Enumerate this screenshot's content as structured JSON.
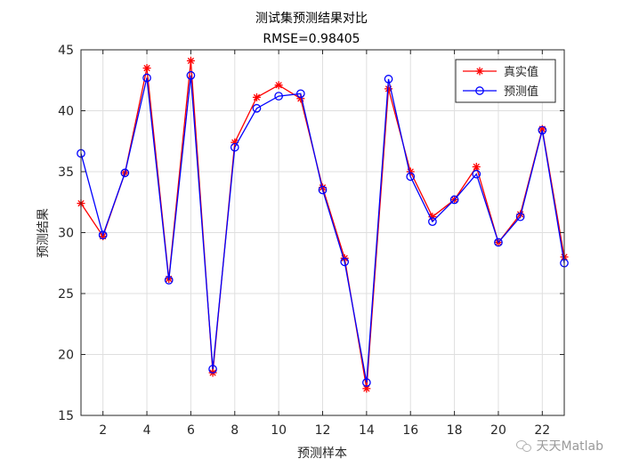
{
  "chart_data": {
    "type": "line",
    "title": "测试集预测结果对比",
    "subtitle": "RMSE=0.98405",
    "xlabel": "预测样本",
    "ylabel": "预测结果",
    "xlim": [
      1,
      23
    ],
    "ylim": [
      15,
      45
    ],
    "xticks": [
      2,
      4,
      6,
      8,
      10,
      12,
      14,
      16,
      18,
      20,
      22
    ],
    "yticks": [
      15,
      20,
      25,
      30,
      35,
      40,
      45
    ],
    "grid": true,
    "legend_position": "top-right",
    "x": [
      1,
      2,
      3,
      4,
      5,
      6,
      7,
      8,
      9,
      10,
      11,
      12,
      13,
      14,
      15,
      16,
      17,
      18,
      19,
      20,
      21,
      22,
      23
    ],
    "series": [
      {
        "name": "真实值",
        "color": "#ff0000",
        "marker": "star",
        "values": [
          32.4,
          29.7,
          34.9,
          43.5,
          26.2,
          44.1,
          18.5,
          37.4,
          41.1,
          42.1,
          41.0,
          33.7,
          27.9,
          17.2,
          41.8,
          35.0,
          31.3,
          32.7,
          35.4,
          29.2,
          31.5,
          38.5,
          28.0
        ]
      },
      {
        "name": "预测值",
        "color": "#0000ff",
        "marker": "circle",
        "values": [
          36.5,
          29.8,
          34.9,
          42.7,
          26.1,
          42.9,
          18.8,
          37.0,
          40.2,
          41.2,
          41.4,
          33.5,
          27.6,
          17.7,
          42.6,
          34.6,
          30.9,
          32.7,
          34.8,
          29.2,
          31.3,
          38.4,
          27.5
        ]
      }
    ]
  },
  "watermark": "天天Matlab"
}
